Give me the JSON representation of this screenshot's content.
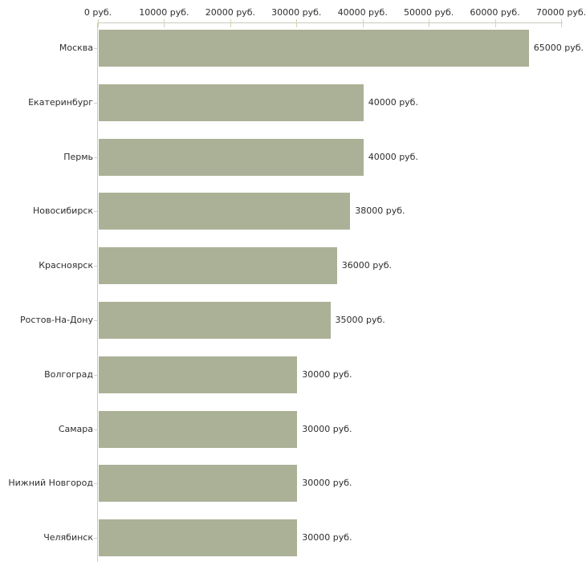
{
  "chart_data": {
    "type": "bar",
    "orientation": "horizontal",
    "title": "",
    "unit": "руб.",
    "categories": [
      "Москва",
      "Екатеринбург",
      "Пермь",
      "Новосибирск",
      "Красноярск",
      "Ростов-На-Дону",
      "Волгоград",
      "Самара",
      "Нижний Новгород",
      "Челябинск"
    ],
    "values": [
      65000,
      40000,
      40000,
      38000,
      36000,
      35000,
      30000,
      30000,
      30000,
      30000
    ],
    "value_labels": [
      "65000 руб.",
      "40000 руб.",
      "40000 руб.",
      "38000 руб.",
      "36000 руб.",
      "35000 руб.",
      "30000 руб.",
      "30000 руб.",
      "30000 руб.",
      "30000 руб."
    ],
    "x_axis": {
      "position": "top",
      "xlim": [
        0,
        70000
      ],
      "tick_values": [
        0,
        10000,
        20000,
        30000,
        40000,
        50000,
        60000,
        70000
      ],
      "tick_labels": [
        "0 руб.",
        "10000 руб.",
        "20000 руб.",
        "30000 руб.",
        "40000 руб.",
        "50000 руб.",
        "60000 руб.",
        "70000 руб."
      ]
    },
    "legend": "none",
    "grid": false,
    "colors": {
      "bar": "#abb197",
      "axis": "#c9c9c1",
      "tick": "#d2d4b2",
      "text": "#2e2e2e",
      "background": "#ffffff"
    }
  }
}
